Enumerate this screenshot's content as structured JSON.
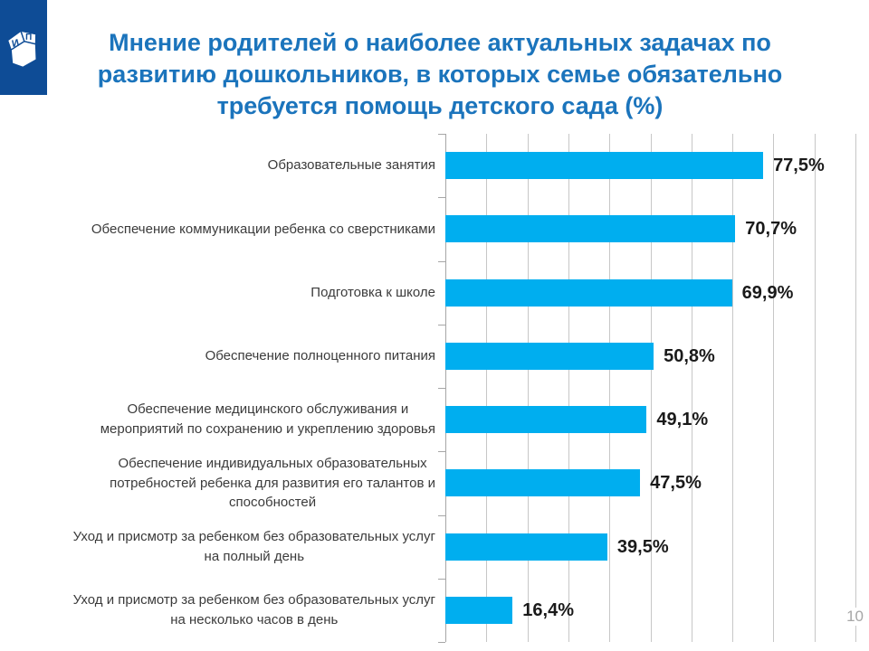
{
  "slide": {
    "title": "Мнение родителей о наиболее актуальных задачах по развитию дошкольников, в которых семье обязательно требуется помощь детского сада (%)",
    "title_lines": [
      "Мнение родителей о наиболее актуальных задачах по",
      "развитию дошкольников, в которых семье обязательно",
      "требуется помощь детского сада (%)"
    ],
    "page_number": "10"
  },
  "logo": {
    "icon": "ip-cube-logo",
    "letters": [
      "И",
      "П"
    ]
  },
  "colors": {
    "title_text": "#1B74BC",
    "logo_background": "#0E4C96",
    "bar_fill": "#00AEEF",
    "gridline": "#C7C7C7",
    "axis": "#A6A6A6",
    "category_text": "#3B3B3B",
    "value_text": "#1A1A1A",
    "page_number_text": "#A6A6A6"
  },
  "chart_data": {
    "type": "bar",
    "orientation": "horizontal",
    "title": "Мнение родителей о наиболее актуальных задачах по развитию дошкольников, в которых семье обязательно требуется помощь детского сада (%)",
    "categories": [
      "Образовательные занятия",
      "Обеспечение коммуникации ребенка со сверстниками",
      "Подготовка к школе",
      "Обеспечение полноценного питания",
      "Обеспечение медицинского обслуживания  и мероприятий по сохранению и укреплению здоровья",
      "Обеспечение индивидуальных образовательных потребностей ребенка для развития его талантов и способностей",
      "Уход  и присмотр за ребенком без образовательных услуг на полный день",
      "Уход  и присмотр за ребенком без образовательных услуг на несколько часов в день"
    ],
    "category_lines": [
      [
        "Образовательные занятия"
      ],
      [
        "Обеспечение коммуникации ребенка со сверстниками"
      ],
      [
        "Подготовка к школе"
      ],
      [
        "Обеспечение полноценного питания"
      ],
      [
        "Обеспечение медицинского обслуживания  и",
        "мероприятий по сохранению и укреплению здоровья"
      ],
      [
        "Обеспечение индивидуальных образовательных",
        "потребностей ребенка для развития его талантов и",
        "способностей"
      ],
      [
        "Уход  и присмотр за ребенком без образовательных услуг",
        "на полный день"
      ],
      [
        "Уход  и присмотр за ребенком без образовательных услуг",
        "на несколько часов в день"
      ]
    ],
    "values": [
      77.5,
      70.7,
      69.9,
      50.8,
      49.1,
      47.5,
      39.5,
      16.4
    ],
    "value_labels": [
      "77,5%",
      "70,7%",
      "69,9%",
      "50,8%",
      "49,1%",
      "47,5%",
      "39,5%",
      "16,4%"
    ],
    "xlim": [
      0,
      100
    ],
    "gridline_step": 10,
    "grid": true,
    "legend": false,
    "data_labels": true
  }
}
